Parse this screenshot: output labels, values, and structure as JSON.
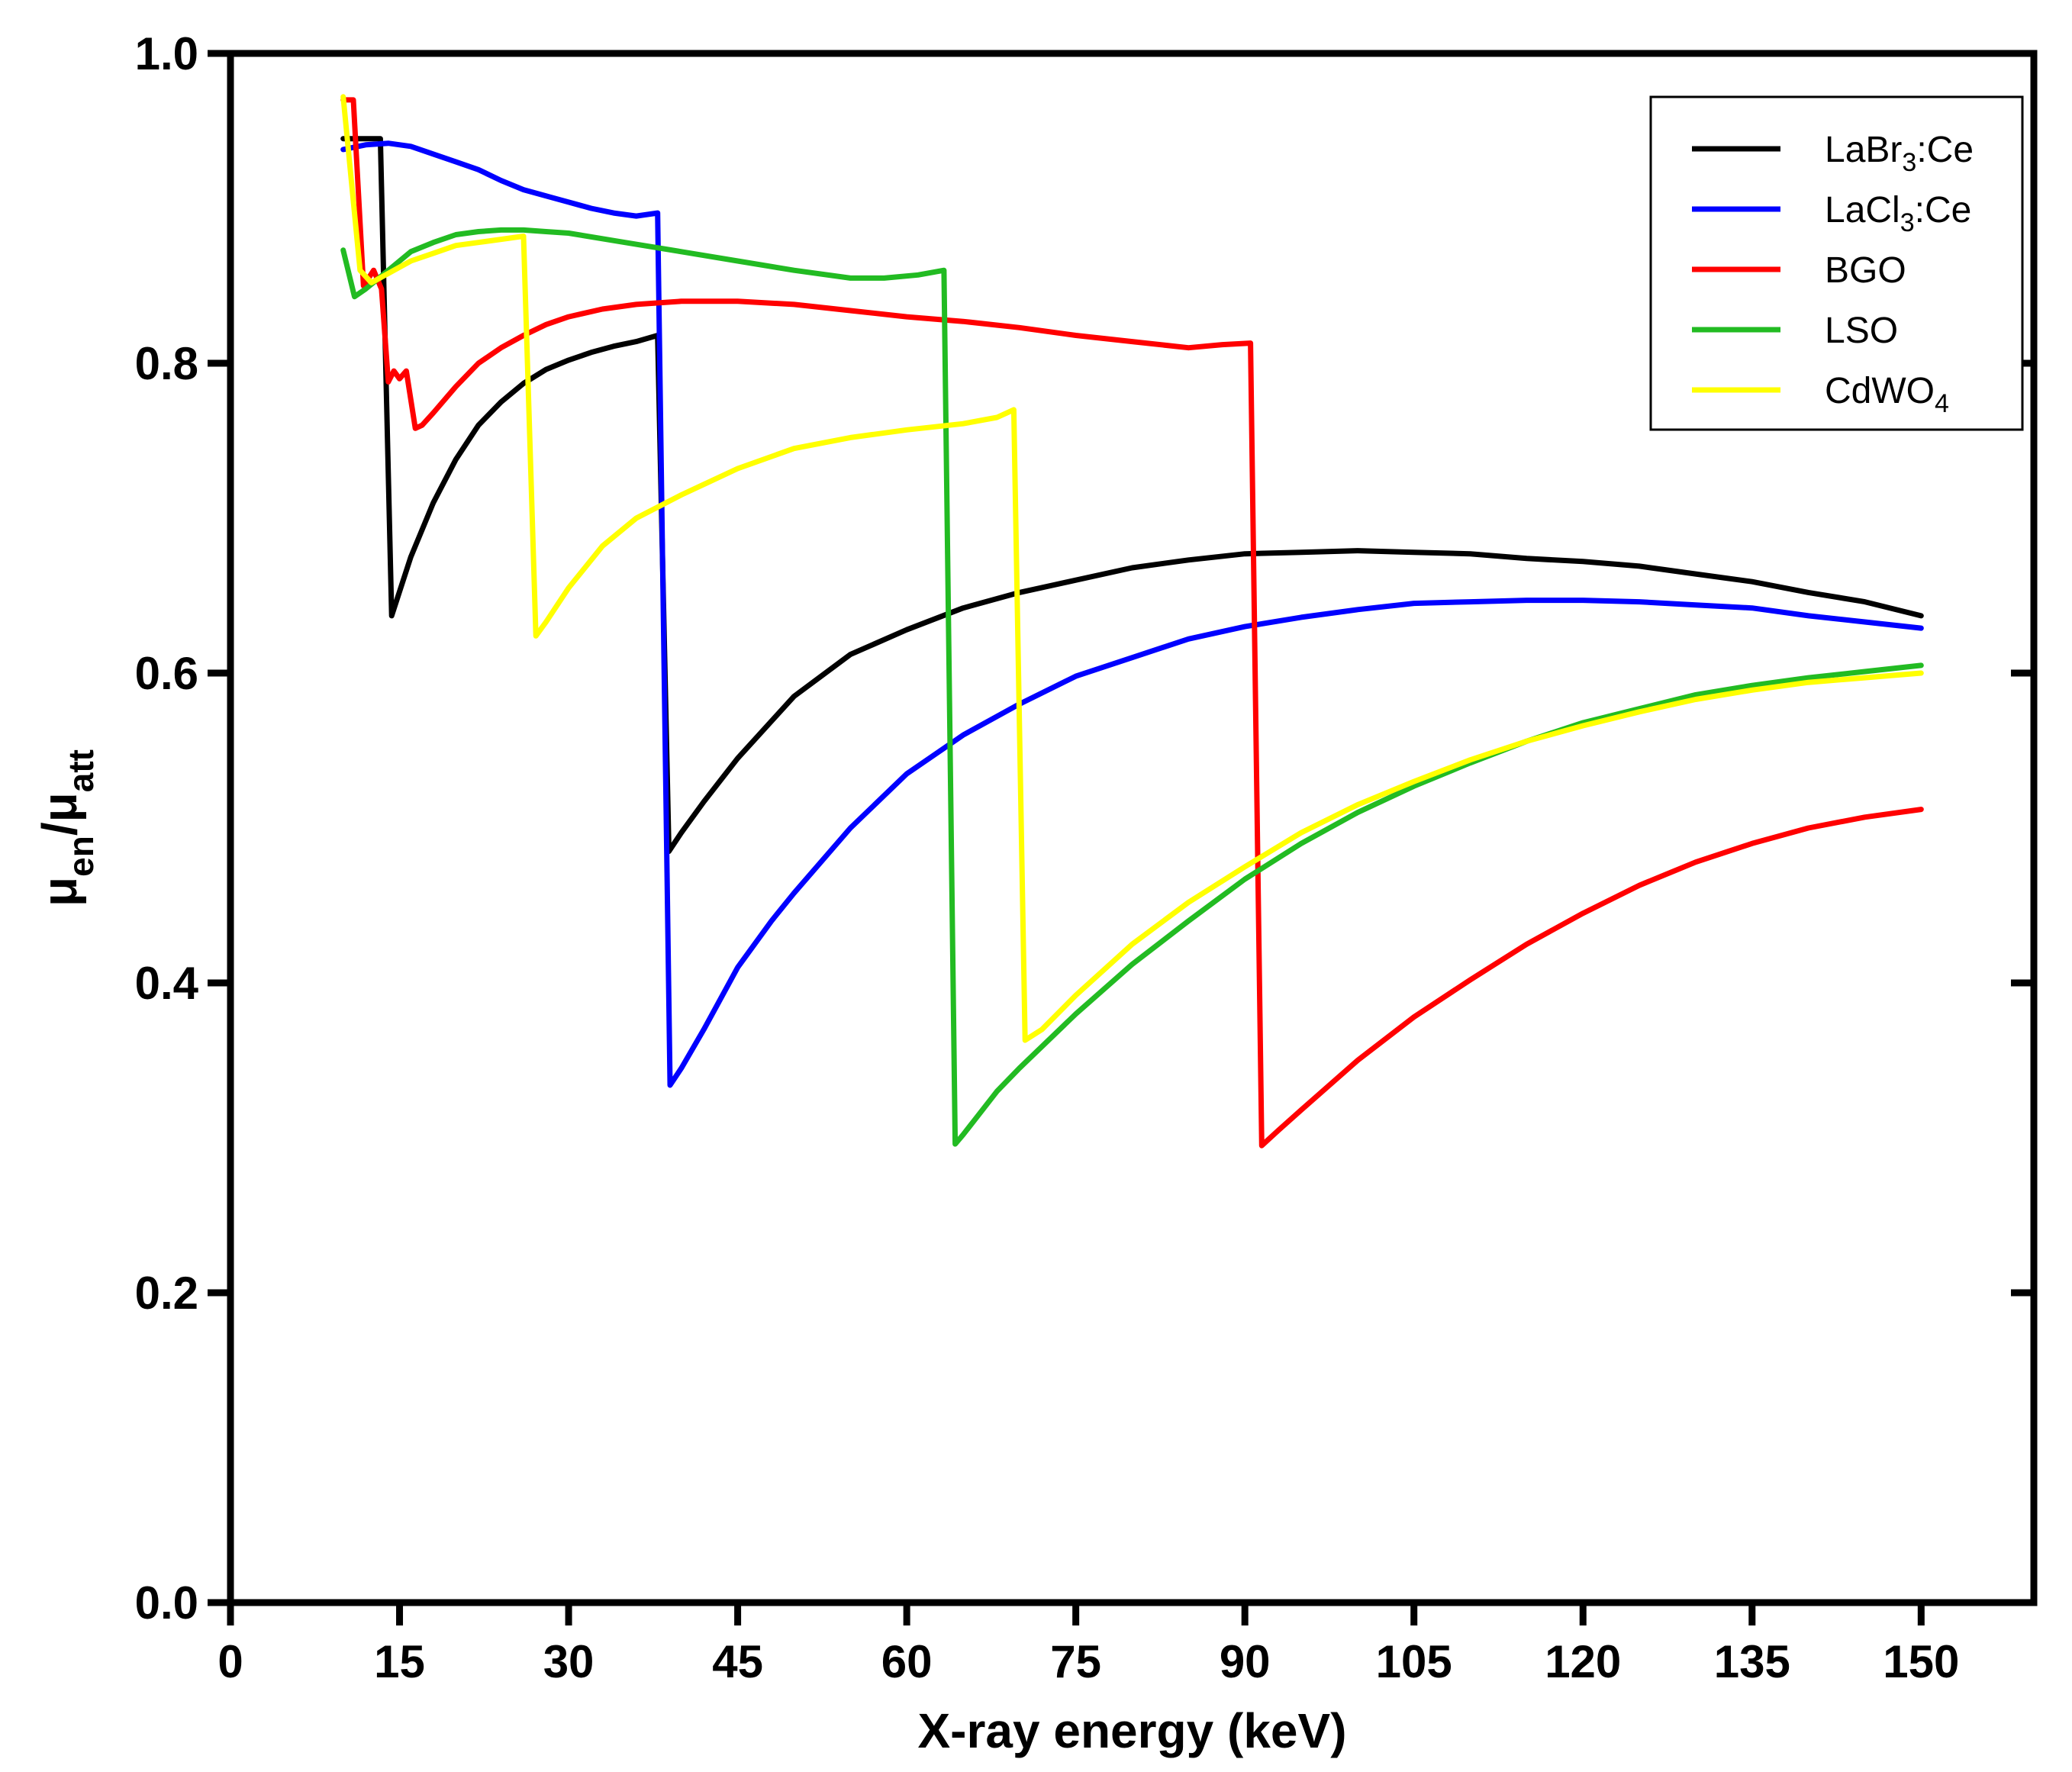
{
  "chart_data": {
    "type": "line",
    "title": "",
    "xlabel": "X-ray energy (keV)",
    "ylabel": "μen/μatt",
    "ylabel_parts": {
      "main": "μ",
      "sub1": "en",
      "sep": "/μ",
      "sub2": "att"
    },
    "xlim": [
      0,
      160
    ],
    "ylim": [
      0,
      1.0
    ],
    "xticks": [
      0,
      15,
      30,
      45,
      60,
      75,
      90,
      105,
      120,
      135,
      150
    ],
    "yticks": [
      0.0,
      0.2,
      0.4,
      0.6,
      0.8,
      1.0
    ],
    "xtick_labels": [
      "0",
      "15",
      "30",
      "45",
      "60",
      "75",
      "90",
      "105",
      "120",
      "135",
      "150"
    ],
    "ytick_labels": [
      "0.0",
      "0.2",
      "0.4",
      "0.6",
      "0.8",
      "1.0"
    ],
    "grid": false,
    "legend_position": "top-right",
    "series": [
      {
        "name": "LaBr3:Ce",
        "legend": {
          "base": "LaBr",
          "sub": "3",
          "rest": ":Ce"
        },
        "color": "#000000",
        "points": [
          [
            10,
            0.945
          ],
          [
            12,
            0.945
          ],
          [
            13.3,
            0.945
          ],
          [
            14.3,
            0.637
          ],
          [
            16,
            0.675
          ],
          [
            18,
            0.71
          ],
          [
            20,
            0.738
          ],
          [
            22,
            0.76
          ],
          [
            24,
            0.775
          ],
          [
            26,
            0.787
          ],
          [
            28,
            0.796
          ],
          [
            30,
            0.802
          ],
          [
            32,
            0.807
          ],
          [
            34,
            0.811
          ],
          [
            36,
            0.814
          ],
          [
            37.9,
            0.818
          ],
          [
            38.9,
            0.485
          ],
          [
            40,
            0.497
          ],
          [
            42,
            0.517
          ],
          [
            45,
            0.545
          ],
          [
            50,
            0.585
          ],
          [
            55,
            0.612
          ],
          [
            60,
            0.628
          ],
          [
            65,
            0.642
          ],
          [
            70,
            0.652
          ],
          [
            75,
            0.66
          ],
          [
            80,
            0.668
          ],
          [
            85,
            0.673
          ],
          [
            90,
            0.677
          ],
          [
            95,
            0.678
          ],
          [
            100,
            0.679
          ],
          [
            105,
            0.678
          ],
          [
            110,
            0.677
          ],
          [
            115,
            0.674
          ],
          [
            120,
            0.672
          ],
          [
            125,
            0.669
          ],
          [
            130,
            0.664
          ],
          [
            135,
            0.659
          ],
          [
            140,
            0.652
          ],
          [
            145,
            0.646
          ],
          [
            150,
            0.637
          ]
        ]
      },
      {
        "name": "LaCl3:Ce",
        "legend": {
          "base": "LaCl",
          "sub": "3",
          "rest": ":Ce"
        },
        "color": "#0000ff",
        "points": [
          [
            10,
            0.938
          ],
          [
            12,
            0.941
          ],
          [
            14,
            0.942
          ],
          [
            16,
            0.94
          ],
          [
            18,
            0.935
          ],
          [
            20,
            0.93
          ],
          [
            22,
            0.925
          ],
          [
            24,
            0.918
          ],
          [
            26,
            0.912
          ],
          [
            28,
            0.908
          ],
          [
            30,
            0.904
          ],
          [
            32,
            0.9
          ],
          [
            34,
            0.897
          ],
          [
            36,
            0.895
          ],
          [
            37.9,
            0.897
          ],
          [
            39,
            0.334
          ],
          [
            40,
            0.345
          ],
          [
            42,
            0.37
          ],
          [
            45,
            0.41
          ],
          [
            48,
            0.44
          ],
          [
            50,
            0.458
          ],
          [
            55,
            0.5
          ],
          [
            60,
            0.535
          ],
          [
            65,
            0.56
          ],
          [
            70,
            0.58
          ],
          [
            75,
            0.598
          ],
          [
            80,
            0.61
          ],
          [
            85,
            0.622
          ],
          [
            90,
            0.63
          ],
          [
            95,
            0.636
          ],
          [
            100,
            0.641
          ],
          [
            105,
            0.645
          ],
          [
            110,
            0.646
          ],
          [
            115,
            0.647
          ],
          [
            120,
            0.647
          ],
          [
            125,
            0.646
          ],
          [
            130,
            0.644
          ],
          [
            135,
            0.642
          ],
          [
            140,
            0.637
          ],
          [
            145,
            0.633
          ],
          [
            150,
            0.629
          ]
        ]
      },
      {
        "name": "BGO",
        "legend": {
          "base": "BGO",
          "sub": "",
          "rest": ""
        },
        "color": "#ff0000",
        "points": [
          [
            10,
            0.97
          ],
          [
            10.9,
            0.97
          ],
          [
            11.8,
            0.85
          ],
          [
            12.7,
            0.86
          ],
          [
            13.4,
            0.848
          ],
          [
            14,
            0.788
          ],
          [
            14.5,
            0.795
          ],
          [
            15,
            0.79
          ],
          [
            15.6,
            0.795
          ],
          [
            16.4,
            0.758
          ],
          [
            17,
            0.76
          ],
          [
            18,
            0.768
          ],
          [
            20,
            0.785
          ],
          [
            22,
            0.8
          ],
          [
            24,
            0.81
          ],
          [
            26,
            0.818
          ],
          [
            28,
            0.825
          ],
          [
            30,
            0.83
          ],
          [
            33,
            0.835
          ],
          [
            36,
            0.838
          ],
          [
            40,
            0.84
          ],
          [
            45,
            0.84
          ],
          [
            50,
            0.838
          ],
          [
            55,
            0.834
          ],
          [
            60,
            0.83
          ],
          [
            65,
            0.827
          ],
          [
            70,
            0.823
          ],
          [
            75,
            0.818
          ],
          [
            80,
            0.814
          ],
          [
            85,
            0.81
          ],
          [
            88,
            0.812
          ],
          [
            90.5,
            0.813
          ],
          [
            91.5,
            0.295
          ],
          [
            93,
            0.305
          ],
          [
            95,
            0.318
          ],
          [
            100,
            0.35
          ],
          [
            105,
            0.378
          ],
          [
            110,
            0.402
          ],
          [
            115,
            0.425
          ],
          [
            120,
            0.445
          ],
          [
            125,
            0.463
          ],
          [
            130,
            0.478
          ],
          [
            135,
            0.49
          ],
          [
            140,
            0.5
          ],
          [
            145,
            0.507
          ],
          [
            150,
            0.512
          ]
        ]
      },
      {
        "name": "LSO",
        "legend": {
          "base": "LSO",
          "sub": "",
          "rest": ""
        },
        "color": "#22bb22",
        "points": [
          [
            10,
            0.873
          ],
          [
            11,
            0.843
          ],
          [
            12,
            0.848
          ],
          [
            14,
            0.86
          ],
          [
            16,
            0.872
          ],
          [
            18,
            0.878
          ],
          [
            20,
            0.883
          ],
          [
            22,
            0.885
          ],
          [
            24,
            0.886
          ],
          [
            26,
            0.886
          ],
          [
            28,
            0.885
          ],
          [
            30,
            0.884
          ],
          [
            35,
            0.878
          ],
          [
            40,
            0.872
          ],
          [
            45,
            0.866
          ],
          [
            50,
            0.86
          ],
          [
            55,
            0.855
          ],
          [
            58,
            0.855
          ],
          [
            61,
            0.857
          ],
          [
            63.3,
            0.86
          ],
          [
            64.3,
            0.296
          ],
          [
            65,
            0.302
          ],
          [
            68,
            0.33
          ],
          [
            70,
            0.345
          ],
          [
            75,
            0.38
          ],
          [
            80,
            0.412
          ],
          [
            85,
            0.44
          ],
          [
            90,
            0.467
          ],
          [
            95,
            0.49
          ],
          [
            100,
            0.51
          ],
          [
            105,
            0.527
          ],
          [
            110,
            0.542
          ],
          [
            115,
            0.556
          ],
          [
            120,
            0.568
          ],
          [
            125,
            0.577
          ],
          [
            130,
            0.586
          ],
          [
            135,
            0.592
          ],
          [
            140,
            0.597
          ],
          [
            145,
            0.601
          ],
          [
            150,
            0.605
          ]
        ]
      },
      {
        "name": "CdWO4",
        "legend": {
          "base": "CdWO",
          "sub": "4",
          "rest": ""
        },
        "color": "#ffff00",
        "points": [
          [
            10,
            0.972
          ],
          [
            11.5,
            0.86
          ],
          [
            12.5,
            0.852
          ],
          [
            14,
            0.858
          ],
          [
            16,
            0.866
          ],
          [
            18,
            0.871
          ],
          [
            20,
            0.876
          ],
          [
            22,
            0.878
          ],
          [
            24,
            0.88
          ],
          [
            26,
            0.882
          ],
          [
            27.1,
            0.624
          ],
          [
            28,
            0.633
          ],
          [
            30,
            0.655
          ],
          [
            33,
            0.682
          ],
          [
            36,
            0.7
          ],
          [
            40,
            0.715
          ],
          [
            45,
            0.732
          ],
          [
            50,
            0.745
          ],
          [
            55,
            0.752
          ],
          [
            60,
            0.757
          ],
          [
            65,
            0.761
          ],
          [
            68,
            0.765
          ],
          [
            69.5,
            0.77
          ],
          [
            70.5,
            0.363
          ],
          [
            72,
            0.37
          ],
          [
            75,
            0.392
          ],
          [
            80,
            0.425
          ],
          [
            85,
            0.452
          ],
          [
            90,
            0.475
          ],
          [
            95,
            0.497
          ],
          [
            100,
            0.515
          ],
          [
            105,
            0.53
          ],
          [
            110,
            0.544
          ],
          [
            115,
            0.556
          ],
          [
            120,
            0.566
          ],
          [
            125,
            0.575
          ],
          [
            130,
            0.583
          ],
          [
            135,
            0.589
          ],
          [
            140,
            0.594
          ],
          [
            145,
            0.597
          ],
          [
            150,
            0.6
          ]
        ]
      }
    ]
  }
}
